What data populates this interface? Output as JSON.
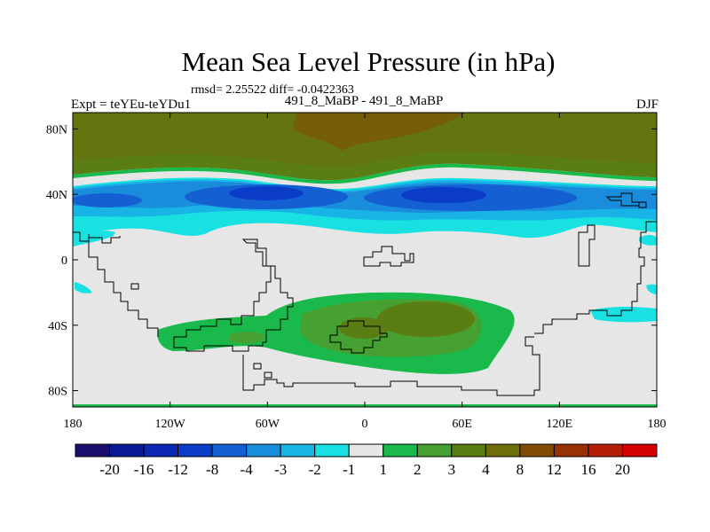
{
  "title": "Mean Sea Level Pressure (in hPa)",
  "stats_line": "rmsd= 2.25522  diff= -0.0422363",
  "left_label": "Expt = teYEu-teYDu1",
  "center_label": "491_8_MaBP - 491_8_MaBP",
  "right_label": "DJF",
  "map": {
    "lat_ticks": [
      {
        "value": 80,
        "label": "80N"
      },
      {
        "value": 40,
        "label": "40N"
      },
      {
        "value": 0,
        "label": "0"
      },
      {
        "value": -40,
        "label": "40S"
      },
      {
        "value": -80,
        "label": "80S"
      }
    ],
    "lon_ticks": [
      {
        "value": -180,
        "label": "180"
      },
      {
        "value": -120,
        "label": "120W"
      },
      {
        "value": -60,
        "label": "60W"
      },
      {
        "value": 0,
        "label": "0"
      },
      {
        "value": 60,
        "label": "60E"
      },
      {
        "value": 120,
        "label": "120E"
      },
      {
        "value": 180,
        "label": "180"
      }
    ],
    "lat_range": [
      -90,
      90
    ],
    "lon_range": [
      -180,
      180
    ]
  },
  "colorbar": {
    "colors": [
      "#1a0f6e",
      "#0a1996",
      "#0a28b4",
      "#0a3cc8",
      "#1460d2",
      "#1a8cdc",
      "#19b4e6",
      "#19e1e1",
      "#e6e6e6",
      "#19b94b",
      "#46a032",
      "#5a7d14",
      "#6e6e0a",
      "#824b05",
      "#963205",
      "#b41e05",
      "#d20000"
    ],
    "labels": [
      "-20",
      "-16",
      "-12",
      "-8",
      "-4",
      "-3",
      "-2",
      "-1",
      "1",
      "2",
      "3",
      "4",
      "8",
      "12",
      "16",
      "20"
    ]
  }
}
